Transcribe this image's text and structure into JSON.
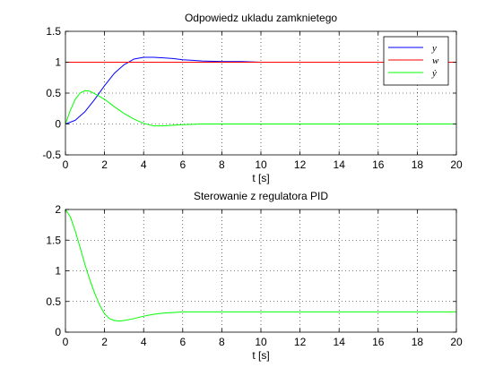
{
  "chart_data": [
    {
      "type": "line",
      "title": "Odpowiedz ukladu zamknietego",
      "xlabel": "t [s]",
      "ylabel": "",
      "xlim": [
        0,
        20
      ],
      "ylim": [
        -0.5,
        1.5
      ],
      "xticks": [
        "0",
        "2",
        "4",
        "6",
        "8",
        "10",
        "12",
        "14",
        "16",
        "18",
        "20"
      ],
      "yticks": [
        "-0.5",
        "0",
        "0.5",
        "1",
        "1.5"
      ],
      "grid": true,
      "legend_position": "top-right",
      "series": [
        {
          "name": "y",
          "color": "#0000ff",
          "x": [
            0,
            0.5,
            1,
            1.5,
            2,
            2.5,
            3,
            3.5,
            4,
            4.5,
            5,
            5.5,
            6,
            6.5,
            7,
            8,
            9,
            10,
            11,
            12.2
          ],
          "y": [
            0,
            0.06,
            0.2,
            0.4,
            0.62,
            0.82,
            0.96,
            1.05,
            1.08,
            1.08,
            1.07,
            1.06,
            1.04,
            1.03,
            1.02,
            1.01,
            1.01,
            1.0,
            1.0,
            1.0
          ]
        },
        {
          "name": "w",
          "color": "#ff0000",
          "x": [
            0,
            20
          ],
          "y": [
            1,
            1
          ]
        },
        {
          "name": "ẏ",
          "color": "#00ff00",
          "x": [
            0,
            0.25,
            0.5,
            0.75,
            1,
            1.25,
            1.5,
            2,
            2.5,
            3,
            3.5,
            4,
            4.5,
            5,
            5.5,
            6,
            7,
            8,
            10,
            20
          ],
          "y": [
            0,
            0.22,
            0.4,
            0.5,
            0.54,
            0.53,
            0.49,
            0.4,
            0.28,
            0.17,
            0.08,
            0.01,
            -0.03,
            -0.03,
            -0.02,
            -0.01,
            0,
            0,
            0,
            0
          ]
        }
      ]
    },
    {
      "type": "line",
      "title": "Sterowanie z regulatora PID",
      "xlabel": "t [s]",
      "ylabel": "",
      "xlim": [
        0,
        20
      ],
      "ylim": [
        0,
        2
      ],
      "xticks": [
        "0",
        "2",
        "4",
        "6",
        "8",
        "10",
        "12",
        "14",
        "16",
        "18",
        "20"
      ],
      "yticks": [
        "0",
        "0.5",
        "1",
        "1.5",
        "2"
      ],
      "grid": true,
      "series": [
        {
          "color": "#00ff00",
          "x": [
            0,
            0.25,
            0.5,
            0.75,
            1,
            1.25,
            1.5,
            1.75,
            2,
            2.25,
            2.5,
            2.75,
            3,
            3.5,
            4,
            4.5,
            5,
            5.5,
            6,
            7,
            8,
            10,
            20
          ],
          "y": [
            2.0,
            1.88,
            1.65,
            1.38,
            1.1,
            0.85,
            0.63,
            0.44,
            0.3,
            0.22,
            0.19,
            0.18,
            0.19,
            0.22,
            0.26,
            0.29,
            0.31,
            0.32,
            0.33,
            0.33,
            0.33,
            0.33,
            0.33
          ]
        }
      ]
    }
  ]
}
